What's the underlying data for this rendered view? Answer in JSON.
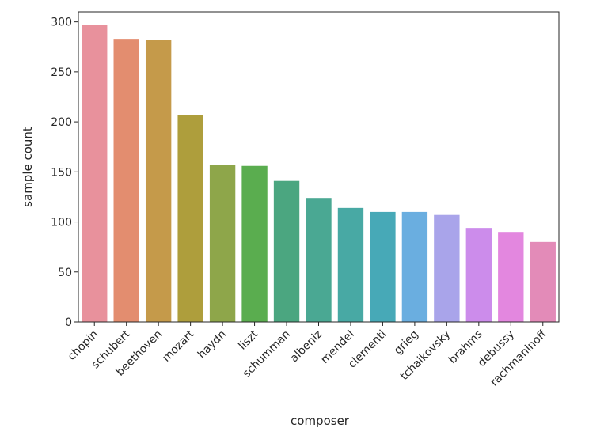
{
  "chart_data": {
    "type": "bar",
    "xlabel": "composer",
    "ylabel": "sample count",
    "ylim": [
      0,
      310
    ],
    "yticks": [
      0,
      50,
      100,
      150,
      200,
      250,
      300
    ],
    "grid": false,
    "categories": [
      "chopin",
      "schubert",
      "beethoven",
      "mozart",
      "haydn",
      "liszt",
      "schumman",
      "albeniz",
      "mendel",
      "clementi",
      "grieg",
      "tchaikovsky",
      "brahms",
      "debussy",
      "rachmaninoff"
    ],
    "values": [
      297,
      283,
      282,
      207,
      157,
      156,
      141,
      124,
      114,
      110,
      110,
      107,
      94,
      90,
      80
    ],
    "colors": [
      "#e8919c",
      "#e38d6f",
      "#c59a4a",
      "#ae9e3c",
      "#8ea64a",
      "#5aad4f",
      "#4ba680",
      "#4aa893",
      "#48a9a4",
      "#47a9b7",
      "#6aaee0",
      "#a9a4ea",
      "#cc8ceb",
      "#e387df",
      "#e38bb8"
    ]
  }
}
